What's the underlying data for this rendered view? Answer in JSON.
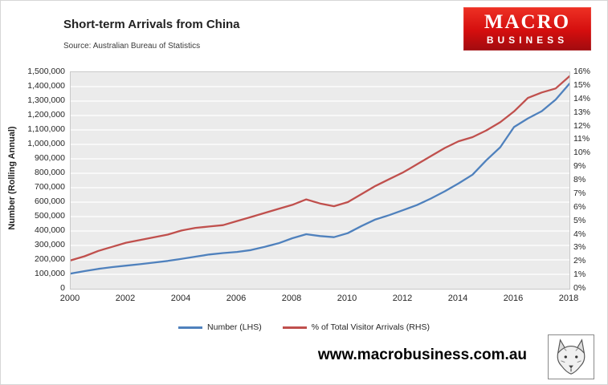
{
  "header": {
    "title": "Short-term Arrivals from China",
    "source": "Source: Australian Bureau of Statistics",
    "logo": {
      "line1": "MACRO",
      "line2": "BUSINESS",
      "bg": "#d40e0e"
    }
  },
  "chart_data": {
    "type": "line",
    "title": "Short-term Arrivals from China",
    "x": [
      2000,
      2000.5,
      2001,
      2001.5,
      2002,
      2002.5,
      2003,
      2003.5,
      2004,
      2004.5,
      2005,
      2005.5,
      2006,
      2006.5,
      2007,
      2007.5,
      2008,
      2008.5,
      2009,
      2009.5,
      2010,
      2010.5,
      2011,
      2011.5,
      2012,
      2012.5,
      2013,
      2013.5,
      2014,
      2014.5,
      2015,
      2015.5,
      2016,
      2016.5,
      2017,
      2017.5,
      2018
    ],
    "series": [
      {
        "name": "Number (LHS)",
        "axis": "left",
        "color": "#4f81bd",
        "values": [
          105000,
          122000,
          138000,
          150000,
          160000,
          170000,
          181000,
          193000,
          207000,
          222000,
          237000,
          247000,
          255000,
          268000,
          290000,
          315000,
          350000,
          378000,
          365000,
          357000,
          385000,
          435000,
          480000,
          510000,
          545000,
          580000,
          625000,
          675000,
          730000,
          790000,
          890000,
          980000,
          1120000,
          1180000,
          1230000,
          1310000,
          1420000
        ]
      },
      {
        "name": "% of Total Visitor Arrivals (RHS)",
        "axis": "right",
        "color": "#c0504d",
        "values": [
          2.1,
          2.4,
          2.8,
          3.1,
          3.4,
          3.6,
          3.8,
          4.0,
          4.3,
          4.5,
          4.6,
          4.7,
          5.0,
          5.3,
          5.6,
          5.9,
          6.2,
          6.6,
          6.3,
          6.1,
          6.4,
          7.0,
          7.6,
          8.1,
          8.6,
          9.2,
          9.8,
          10.4,
          10.9,
          11.2,
          11.7,
          12.3,
          13.1,
          14.1,
          14.5,
          14.8,
          15.7
        ]
      }
    ],
    "x_ticks": [
      "2000",
      "2002",
      "2004",
      "2006",
      "2008",
      "2010",
      "2012",
      "2014",
      "2016",
      "2018"
    ],
    "left_axis": {
      "label": "Number (Rolling Annual)",
      "min": 0,
      "max": 1500000,
      "ticks": [
        "0",
        "100,000",
        "200,000",
        "300,000",
        "400,000",
        "500,000",
        "600,000",
        "700,000",
        "800,000",
        "900,000",
        "1,000,000",
        "1,100,000",
        "1,200,000",
        "1,300,000",
        "1,400,000",
        "1,500,000"
      ]
    },
    "right_axis": {
      "min": 0,
      "max": 16,
      "ticks": [
        "0%",
        "1%",
        "2%",
        "3%",
        "4%",
        "5%",
        "6%",
        "7%",
        "8%",
        "9%",
        "10%",
        "11%",
        "12%",
        "13%",
        "14%",
        "15%",
        "16%"
      ]
    },
    "plot_bg": "#ebebeb",
    "gridline_color": "#ffffff",
    "legend_position": "bottom",
    "grid": true
  },
  "legend": [
    {
      "label": "Number (LHS)",
      "color": "#4f81bd"
    },
    {
      "label": "% of Total Visitor Arrivals (RHS)",
      "color": "#c0504d"
    }
  ],
  "footer": {
    "website": "www.macrobusiness.com.au"
  }
}
